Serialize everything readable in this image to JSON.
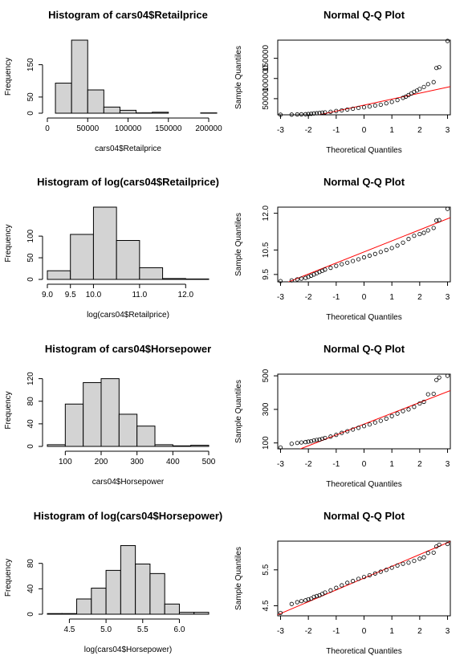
{
  "figure": {
    "background": "#ffffff",
    "bar_fill": "#d3d3d3",
    "line_color": "#ff0000"
  },
  "chart_data": [
    {
      "type": "bar",
      "title": "Histogram of cars04$Retailprice",
      "xlabel": "cars04$Retailprice",
      "ylabel": "Frequency",
      "bins": [
        [
          10000,
          30000
        ],
        [
          30000,
          50000
        ],
        [
          50000,
          70000
        ],
        [
          70000,
          90000
        ],
        [
          90000,
          110000
        ],
        [
          110000,
          130000
        ],
        [
          130000,
          150000
        ],
        [
          150000,
          170000
        ],
        [
          170000,
          190000
        ],
        [
          190000,
          210000
        ]
      ],
      "values": [
        93,
        226,
        72,
        19,
        9,
        1,
        3,
        0,
        0,
        1
      ],
      "xlim": [
        0,
        200000
      ],
      "ylim": [
        0,
        226
      ],
      "xticks": [
        0,
        50000,
        100000,
        150000,
        200000
      ],
      "xtick_labels": [
        "0",
        "50000",
        "100000",
        "150000",
        "200000"
      ],
      "yticks": [
        0,
        50,
        150
      ],
      "ytick_labels": [
        "0",
        "50",
        "150"
      ]
    },
    {
      "type": "scatter",
      "title": "Normal Q-Q Plot",
      "xlabel": "Theoretical Quantiles",
      "ylabel": "Sample Quantiles",
      "xlim": [
        -3.1,
        3.1
      ],
      "ylim": [
        10000,
        195000
      ],
      "xticks": [
        -3,
        -2,
        -1,
        0,
        1,
        2,
        3
      ],
      "xtick_labels": [
        "-3",
        "-2",
        "-1",
        "0",
        "1",
        "2",
        "3"
      ],
      "yticks": [
        50000,
        100000,
        150000
      ],
      "ytick_labels": [
        "50000",
        "100000",
        "150000"
      ],
      "qq_points": [
        [
          -3.0,
          10200
        ],
        [
          -2.6,
          10500
        ],
        [
          -2.4,
          11000
        ],
        [
          -2.25,
          11200
        ],
        [
          -2.1,
          11500
        ],
        [
          -2.0,
          12000
        ],
        [
          -1.9,
          12500
        ],
        [
          -1.8,
          13500
        ],
        [
          -1.7,
          14000
        ],
        [
          -1.6,
          14500
        ],
        [
          -1.5,
          15500
        ],
        [
          -1.4,
          16000
        ],
        [
          -1.2,
          17500
        ],
        [
          -1.0,
          19500
        ],
        [
          -0.8,
          21000
        ],
        [
          -0.6,
          23000
        ],
        [
          -0.4,
          25000
        ],
        [
          -0.2,
          27000
        ],
        [
          0.0,
          28500
        ],
        [
          0.2,
          30500
        ],
        [
          0.4,
          33000
        ],
        [
          0.6,
          35000
        ],
        [
          0.8,
          38500
        ],
        [
          1.0,
          42000
        ],
        [
          1.2,
          46500
        ],
        [
          1.4,
          52000
        ],
        [
          1.5,
          55000
        ],
        [
          1.6,
          59000
        ],
        [
          1.7,
          63000
        ],
        [
          1.8,
          67000
        ],
        [
          1.9,
          70000
        ],
        [
          2.0,
          74000
        ],
        [
          2.15,
          79000
        ],
        [
          2.3,
          86000
        ],
        [
          2.5,
          91000
        ],
        [
          2.6,
          126000
        ],
        [
          2.7,
          128000
        ],
        [
          3.0,
          193000
        ]
      ],
      "qq_line": [
        [
          -3.1,
          -12000
        ],
        [
          3.1,
          80000
        ]
      ]
    },
    {
      "type": "bar",
      "title": "Histogram of log(cars04$Retailprice)",
      "xlabel": "log(cars04$Retailprice)",
      "ylabel": "Frequency",
      "bins": [
        [
          9.0,
          9.5
        ],
        [
          9.5,
          10.0
        ],
        [
          10.0,
          10.5
        ],
        [
          10.5,
          11.0
        ],
        [
          11.0,
          11.5
        ],
        [
          11.5,
          12.0
        ],
        [
          12.0,
          12.5
        ]
      ],
      "values": [
        20,
        104,
        167,
        90,
        27,
        2,
        1
      ],
      "xlim": [
        9.0,
        12.5
      ],
      "ylim": [
        0,
        167
      ],
      "xticks": [
        9.0,
        9.5,
        10.0,
        11.0,
        12.0
      ],
      "xtick_labels": [
        "9.0",
        "9.5",
        "10.0",
        "11.0",
        "12.0"
      ],
      "yticks": [
        0,
        50,
        100
      ],
      "ytick_labels": [
        "0",
        "50",
        "100"
      ]
    },
    {
      "type": "scatter",
      "title": "Normal Q-Q Plot",
      "xlabel": "Theoretical Quantiles",
      "ylabel": "Sample Quantiles",
      "xlim": [
        -3.1,
        3.1
      ],
      "ylim": [
        9.2,
        12.25
      ],
      "xticks": [
        -3,
        -2,
        -1,
        0,
        1,
        2,
        3
      ],
      "xtick_labels": [
        "-3",
        "-2",
        "-1",
        "0",
        "1",
        "2",
        "3"
      ],
      "yticks": [
        9.5,
        10.5,
        12.0
      ],
      "ytick_labels": [
        "9.5",
        "10.5",
        "12.0"
      ],
      "qq_points": [
        [
          -3.0,
          9.23
        ],
        [
          -2.6,
          9.26
        ],
        [
          -2.4,
          9.3
        ],
        [
          -2.25,
          9.33
        ],
        [
          -2.1,
          9.36
        ],
        [
          -2.0,
          9.4
        ],
        [
          -1.9,
          9.45
        ],
        [
          -1.8,
          9.5
        ],
        [
          -1.7,
          9.55
        ],
        [
          -1.6,
          9.6
        ],
        [
          -1.5,
          9.65
        ],
        [
          -1.4,
          9.7
        ],
        [
          -1.2,
          9.77
        ],
        [
          -1.0,
          9.85
        ],
        [
          -0.8,
          9.92
        ],
        [
          -0.6,
          9.98
        ],
        [
          -0.4,
          10.05
        ],
        [
          -0.2,
          10.12
        ],
        [
          0.0,
          10.2
        ],
        [
          0.2,
          10.27
        ],
        [
          0.4,
          10.34
        ],
        [
          0.6,
          10.42
        ],
        [
          0.8,
          10.5
        ],
        [
          1.0,
          10.58
        ],
        [
          1.2,
          10.68
        ],
        [
          1.4,
          10.8
        ],
        [
          1.6,
          10.95
        ],
        [
          1.8,
          11.08
        ],
        [
          2.0,
          11.15
        ],
        [
          2.15,
          11.2
        ],
        [
          2.3,
          11.3
        ],
        [
          2.5,
          11.4
        ],
        [
          2.6,
          11.7
        ],
        [
          2.7,
          11.72
        ],
        [
          3.0,
          12.18
        ]
      ],
      "qq_line": [
        [
          -3.1,
          9.02
        ],
        [
          3.1,
          11.82
        ]
      ]
    },
    {
      "type": "bar",
      "title": "Histogram of cars04$Horsepower",
      "xlabel": "cars04$Horsepower",
      "ylabel": "Frequency",
      "bins": [
        [
          50,
          100
        ],
        [
          100,
          150
        ],
        [
          150,
          200
        ],
        [
          200,
          250
        ],
        [
          250,
          300
        ],
        [
          300,
          350
        ],
        [
          350,
          400
        ],
        [
          400,
          450
        ],
        [
          450,
          500
        ]
      ],
      "values": [
        3,
        75,
        113,
        120,
        57,
        36,
        3,
        1,
        2
      ],
      "xlim": [
        50,
        500
      ],
      "ylim": [
        0,
        128
      ],
      "xticks": [
        100,
        200,
        300,
        400,
        500
      ],
      "xtick_labels": [
        "100",
        "200",
        "300",
        "400",
        "500"
      ],
      "yticks": [
        0,
        40,
        80,
        120
      ],
      "ytick_labels": [
        "0",
        "40",
        "80",
        "120"
      ]
    },
    {
      "type": "scatter",
      "title": "Normal Q-Q Plot",
      "xlabel": "Theoretical Quantiles",
      "ylabel": "Sample Quantiles",
      "xlim": [
        -3.1,
        3.1
      ],
      "ylim": [
        65,
        510
      ],
      "xticks": [
        -3,
        -2,
        -1,
        0,
        1,
        2,
        3
      ],
      "xtick_labels": [
        "-3",
        "-2",
        "-1",
        "0",
        "1",
        "2",
        "3"
      ],
      "yticks": [
        100,
        300,
        500
      ],
      "ytick_labels": [
        "100",
        "300",
        "500"
      ],
      "qq_points": [
        [
          -3.0,
          73
        ],
        [
          -2.6,
          95
        ],
        [
          -2.4,
          100
        ],
        [
          -2.25,
          103
        ],
        [
          -2.1,
          105
        ],
        [
          -2.0,
          108
        ],
        [
          -1.9,
          110
        ],
        [
          -1.8,
          115
        ],
        [
          -1.7,
          118
        ],
        [
          -1.6,
          120
        ],
        [
          -1.5,
          125
        ],
        [
          -1.4,
          130
        ],
        [
          -1.2,
          138
        ],
        [
          -1.0,
          148
        ],
        [
          -0.8,
          160
        ],
        [
          -0.6,
          170
        ],
        [
          -0.4,
          180
        ],
        [
          -0.2,
          190
        ],
        [
          0.0,
          200
        ],
        [
          0.2,
          210
        ],
        [
          0.4,
          222
        ],
        [
          0.6,
          232
        ],
        [
          0.8,
          245
        ],
        [
          1.0,
          260
        ],
        [
          1.2,
          275
        ],
        [
          1.4,
          290
        ],
        [
          1.6,
          300
        ],
        [
          1.8,
          315
        ],
        [
          2.0,
          335
        ],
        [
          2.15,
          345
        ],
        [
          2.3,
          390
        ],
        [
          2.5,
          393
        ],
        [
          2.6,
          475
        ],
        [
          2.7,
          490
        ],
        [
          3.0,
          500
        ]
      ],
      "qq_line": [
        [
          -3.1,
          12
        ],
        [
          3.1,
          412
        ]
      ]
    },
    {
      "type": "bar",
      "title": "Histogram of log(cars04$Horsepower)",
      "xlabel": "log(cars04$Horsepower)",
      "ylabel": "Frequency",
      "bins": [
        [
          4.2,
          4.4
        ],
        [
          4.4,
          4.6
        ],
        [
          4.6,
          4.8
        ],
        [
          4.8,
          5.0
        ],
        [
          5.0,
          5.2
        ],
        [
          5.2,
          5.4
        ],
        [
          5.4,
          5.6
        ],
        [
          5.6,
          5.8
        ],
        [
          5.8,
          6.0
        ],
        [
          6.0,
          6.2
        ],
        [
          6.2,
          6.4
        ]
      ],
      "values": [
        1,
        1,
        24,
        41,
        69,
        108,
        79,
        64,
        16,
        3,
        3
      ],
      "xlim": [
        4.2,
        6.4
      ],
      "ylim": [
        0,
        115
      ],
      "xticks": [
        4.5,
        5.0,
        5.5,
        6.0
      ],
      "xtick_labels": [
        "4.5",
        "5.0",
        "5.5",
        "6.0"
      ],
      "yticks": [
        0,
        40,
        80
      ],
      "ytick_labels": [
        "0",
        "40",
        "80"
      ]
    },
    {
      "type": "scatter",
      "title": "Normal Q-Q Plot",
      "xlabel": "Theoretical Quantiles",
      "ylabel": "Sample Quantiles",
      "xlim": [
        -3.1,
        3.1
      ],
      "ylim": [
        4.22,
        6.3
      ],
      "xticks": [
        -3,
        -2,
        -1,
        0,
        1,
        2,
        3
      ],
      "xtick_labels": [
        "-3",
        "-2",
        "-1",
        "0",
        "1",
        "2",
        "3"
      ],
      "yticks": [
        4.5,
        5.5
      ],
      "ytick_labels": [
        "4.5",
        "5.5"
      ],
      "qq_points": [
        [
          -3.0,
          4.3
        ],
        [
          -2.6,
          4.55
        ],
        [
          -2.4,
          4.6
        ],
        [
          -2.25,
          4.63
        ],
        [
          -2.1,
          4.65
        ],
        [
          -2.0,
          4.68
        ],
        [
          -1.9,
          4.7
        ],
        [
          -1.8,
          4.75
        ],
        [
          -1.7,
          4.77
        ],
        [
          -1.6,
          4.79
        ],
        [
          -1.5,
          4.83
        ],
        [
          -1.4,
          4.87
        ],
        [
          -1.2,
          4.93
        ],
        [
          -1.0,
          5.0
        ],
        [
          -0.8,
          5.07
        ],
        [
          -0.6,
          5.14
        ],
        [
          -0.4,
          5.19
        ],
        [
          -0.2,
          5.25
        ],
        [
          0.0,
          5.3
        ],
        [
          0.2,
          5.35
        ],
        [
          0.4,
          5.4
        ],
        [
          0.6,
          5.45
        ],
        [
          0.8,
          5.5
        ],
        [
          1.0,
          5.56
        ],
        [
          1.2,
          5.62
        ],
        [
          1.4,
          5.67
        ],
        [
          1.6,
          5.7
        ],
        [
          1.8,
          5.75
        ],
        [
          2.0,
          5.81
        ],
        [
          2.15,
          5.85
        ],
        [
          2.3,
          5.97
        ],
        [
          2.5,
          5.98
        ],
        [
          2.6,
          6.15
        ],
        [
          2.7,
          6.2
        ],
        [
          3.0,
          6.22
        ]
      ],
      "qq_line": [
        [
          -3.1,
          4.25
        ],
        [
          3.1,
          6.29
        ]
      ]
    }
  ]
}
